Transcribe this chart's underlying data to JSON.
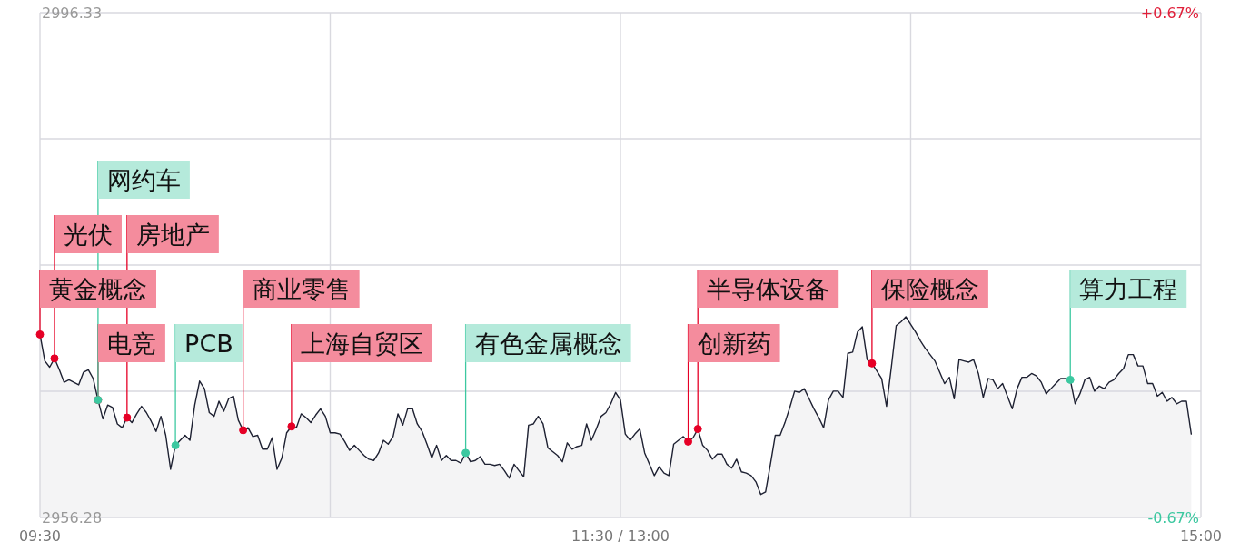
{
  "chart_data": {
    "type": "area",
    "ylim": [
      2956.28,
      2996.33
    ],
    "y2lim": [
      -0.67,
      0.67
    ],
    "categories": [
      "09:30",
      null,
      null,
      null,
      null,
      null,
      null,
      null,
      null,
      null,
      null,
      null,
      null,
      null,
      null,
      null,
      null,
      null,
      null,
      null,
      null,
      null,
      null,
      null,
      null,
      null,
      null,
      null,
      null,
      null,
      null,
      null,
      null,
      null,
      null,
      null,
      null,
      null,
      null,
      null,
      null,
      null,
      null,
      null,
      null,
      null,
      null,
      null,
      null,
      null,
      null,
      null,
      null,
      null,
      null,
      null,
      null,
      null,
      null,
      null,
      null,
      null,
      null,
      null,
      null,
      null,
      null,
      null,
      null,
      null,
      null,
      null,
      null,
      null,
      null,
      null,
      null,
      null,
      null,
      null,
      null,
      null,
      null,
      null,
      null,
      null,
      null,
      null,
      null,
      null,
      null,
      null,
      null,
      null,
      null,
      null,
      null,
      null,
      null,
      null,
      null,
      null,
      null,
      null,
      null,
      null,
      null,
      null,
      null,
      null,
      null,
      null,
      null,
      null,
      null,
      null,
      null,
      null,
      null,
      null,
      "11:30 / 13:00",
      null,
      null,
      null,
      null,
      null,
      null,
      null,
      null,
      null,
      null,
      null,
      null,
      null,
      null,
      null,
      null,
      null,
      null,
      null,
      null,
      null,
      null,
      null,
      null,
      null,
      null,
      null,
      null,
      null,
      null,
      null,
      null,
      null,
      null,
      null,
      null,
      null,
      null,
      null,
      null,
      null,
      null,
      null,
      null,
      null,
      null,
      null,
      null,
      null,
      null,
      null,
      null,
      null,
      null,
      null,
      null,
      null,
      null,
      null,
      null,
      null,
      null,
      null,
      null,
      null,
      null,
      null,
      null,
      null,
      null,
      null,
      null,
      null,
      null,
      null,
      null,
      null,
      null,
      null,
      null,
      null,
      null,
      null,
      null,
      null,
      null,
      null,
      null,
      null,
      null,
      null,
      null,
      null,
      null,
      null,
      null,
      null,
      null,
      null,
      null,
      null,
      null,
      null,
      null,
      null,
      null,
      null,
      null,
      null,
      null,
      null,
      null,
      null,
      null,
      null,
      null,
      null,
      null,
      null,
      "15:00"
    ],
    "yticks": [
      2956.28,
      {
        "value": 2966.29,
        "label": null
      },
      {
        "value": 2976.31,
        "label": null
      },
      {
        "value": 2986.32,
        "label": null
      },
      2996.33
    ],
    "y2ticks": [
      {
        "value": -0.67,
        "label": "-0.67%"
      },
      {
        "value": 0.67,
        "label": "+0.67%"
      }
    ],
    "grid": true,
    "series": [
      {
        "color": "#1e2132",
        "values": [
          2970.8,
          2968.7,
          2968.2,
          2968.9,
          2968.0,
          2967.0,
          2967.2,
          2967.0,
          2966.8,
          2967.8,
          2968.0,
          2967.3,
          2965.6,
          2964.1,
          2965.2,
          2965.0,
          2963.7,
          2963.4,
          2964.2,
          2963.8,
          2964.5,
          2965.1,
          2964.6,
          2963.9,
          2963.1,
          2964.3,
          2962.8,
          2960.1,
          2962.0,
          2962.4,
          2962.8,
          2962.4,
          2965.2,
          2967.1,
          2966.5,
          2964.6,
          2964.3,
          2965.5,
          2964.7,
          2965.7,
          2965.9,
          2964.0,
          2963.2,
          2963.4,
          2962.7,
          2962.8,
          2961.7,
          2961.7,
          2962.6,
          2960.1,
          2961.0,
          2963.0,
          2963.5,
          2963.4,
          2964.5,
          2964.2,
          2963.8,
          2964.4,
          2964.9,
          2964.3,
          2963.0,
          2963.0,
          2962.9,
          2962.3,
          2961.6,
          2962.0,
          2961.6,
          2961.2,
          2960.9,
          2960.8,
          2961.4,
          2962.4,
          2962.1,
          2962.7,
          2964.5,
          2963.6,
          2964.9,
          2964.9,
          2963.7,
          2963.1,
          2962.1,
          2961.0,
          2962.0,
          2960.8,
          2961.2,
          2960.8,
          2960.8,
          2960.6,
          2961.4,
          2960.7,
          2960.8,
          2961.1,
          2960.5,
          2960.5,
          2960.4,
          2960.5,
          2960.0,
          2959.4,
          2960.5,
          2960.0,
          2959.5,
          2963.6,
          2963.7,
          2964.3,
          2963.7,
          2961.8,
          2961.5,
          2961.2,
          2960.7,
          2962.2,
          2961.7,
          2961.9,
          2962.0,
          2963.7,
          2962.4,
          2963.3,
          2964.3,
          2964.6,
          2965.3,
          2966.2,
          2965.6,
          2962.9,
          2962.4,
          2962.9,
          2963.3,
          2961.4,
          2960.5,
          2959.6,
          2960.3,
          2959.8,
          2959.6,
          2962.1,
          2962.4,
          2962.7,
          2962.3,
          2962.6,
          2963.3,
          2962.0,
          2961.6,
          2960.9,
          2961.3,
          2961.3,
          2960.5,
          2960.2,
          2960.9,
          2959.9,
          2959.8,
          2959.6,
          2959.1,
          2958.1,
          2958.3,
          2960.5,
          2962.8,
          2962.8,
          2963.8,
          2965.0,
          2966.3,
          2966.2,
          2966.5,
          2965.7,
          2964.9,
          2964.2,
          2963.4,
          2965.6,
          2966.3,
          2966.3,
          2965.8,
          2969.3,
          2969.4,
          2971.0,
          2971.4,
          2968.8,
          2968.5,
          2967.9,
          2967.3,
          2965.1,
          2968.2,
          2971.5,
          2971.8,
          2972.2,
          2971.6,
          2971.0,
          2970.3,
          2969.7,
          2969.2,
          2968.7,
          2967.8,
          2966.9,
          2967.4,
          2965.7,
          2968.8,
          2968.7,
          2968.6,
          2968.8,
          2967.7,
          2965.8,
          2967.3,
          2967.2,
          2966.5,
          2966.9,
          2965.9,
          2964.9,
          2966.5,
          2967.4,
          2967.4,
          2967.7,
          2967.5,
          2967.0,
          2966.1,
          2966.5,
          2966.9,
          2967.3,
          2967.3,
          2967.2,
          2965.3,
          2966.1,
          2967.2,
          2967.4,
          2966.3,
          2966.7,
          2966.5,
          2967.0,
          2967.2,
          2967.7,
          2968.1,
          2969.2,
          2969.2,
          2968.3,
          2968.3,
          2966.9,
          2966.9,
          2965.9,
          2966.2,
          2965.5,
          2965.8,
          2965.3,
          2965.5,
          2965.5,
          2962.9,
          null,
          null
        ]
      },
      {
        "type": "scatter",
        "marker": "circle",
        "color": "#e60026",
        "values": [
          2970.8,
          null,
          null,
          2968.9,
          null,
          null,
          null,
          null,
          null,
          null,
          null,
          null,
          2965.6,
          null,
          null,
          null,
          null,
          null,
          2964.2,
          null,
          null,
          null,
          null,
          null,
          null,
          null,
          null,
          null,
          null,
          null,
          null,
          null,
          null,
          null,
          null,
          null,
          null,
          null,
          null,
          null,
          null,
          null,
          2963.2,
          null,
          null,
          null,
          null,
          null,
          null,
          null,
          null,
          null,
          2963.5,
          null,
          null,
          null,
          null,
          null,
          null,
          null,
          null,
          null,
          null,
          null,
          null,
          null,
          null,
          null,
          null,
          null,
          null,
          null,
          null,
          null,
          null,
          null,
          null,
          null,
          null,
          null,
          null,
          null,
          null,
          null,
          null,
          null,
          null,
          null,
          null,
          null,
          null,
          null,
          null,
          null,
          null,
          null,
          null,
          null,
          null,
          null,
          null,
          null,
          null,
          null,
          null,
          null,
          null,
          null,
          null,
          null,
          null,
          null,
          null,
          null,
          null,
          null,
          null,
          null,
          null,
          null,
          null,
          null,
          null,
          null,
          null,
          null,
          null,
          null,
          null,
          null,
          null,
          null,
          null,
          null,
          2962.3,
          null,
          2963.3,
          null,
          null,
          null,
          null,
          null,
          null,
          null,
          null,
          null,
          null,
          null,
          null,
          null,
          null,
          null,
          null,
          null,
          null,
          null,
          null,
          null,
          null,
          null,
          null,
          null,
          null,
          null,
          null,
          null,
          null,
          null,
          null,
          null,
          null,
          null,
          2968.5,
          null,
          null,
          null,
          null,
          null,
          null,
          null,
          null,
          null,
          null,
          null,
          null,
          null,
          null,
          null,
          null,
          null,
          null,
          null,
          null,
          null,
          null,
          null,
          null,
          null,
          null,
          null,
          null,
          null,
          null,
          null,
          null,
          null,
          null,
          null,
          null,
          null,
          null,
          null,
          null,
          null,
          null,
          null,
          null,
          null,
          null,
          null,
          null,
          null,
          null,
          null,
          null,
          null,
          null,
          null,
          null,
          null,
          null,
          null,
          null,
          null,
          null,
          null,
          null,
          null,
          null,
          null,
          null
        ],
        "value_labels": [
          "黄金概念",
          null,
          null,
          "光伏",
          null,
          null,
          null,
          null,
          null,
          null,
          null,
          null,
          "电竞",
          null,
          null,
          null,
          null,
          null,
          "房地产",
          null,
          null,
          null,
          null,
          null,
          null,
          null,
          null,
          null,
          null,
          null,
          null,
          null,
          null,
          null,
          null,
          null,
          null,
          null,
          null,
          null,
          null,
          null,
          "商业零售",
          null,
          null,
          null,
          null,
          null,
          null,
          null,
          null,
          null,
          "上海自贸区",
          null,
          null,
          null,
          null,
          null,
          null,
          null,
          null,
          null,
          null,
          null,
          null,
          null,
          null,
          null,
          null,
          null,
          null,
          null,
          null,
          null,
          null,
          null,
          null,
          null,
          null,
          null,
          null,
          null,
          null,
          null,
          null,
          null,
          null,
          null,
          null,
          null,
          null,
          null,
          null,
          null,
          null,
          null,
          null,
          null,
          null,
          null,
          null,
          null,
          null,
          null,
          null,
          null,
          null,
          null,
          null,
          null,
          null,
          null,
          null,
          null,
          null,
          null,
          null,
          null,
          null,
          null,
          null,
          null,
          null,
          null,
          null,
          null,
          null,
          null,
          null,
          null,
          null,
          null,
          null,
          null,
          "创新药",
          null,
          "半导体设备",
          null,
          null,
          null,
          null,
          null,
          null,
          null,
          null,
          null,
          null,
          null,
          null,
          null,
          null,
          null,
          null,
          null,
          null,
          null,
          null,
          null,
          null,
          null,
          null,
          null,
          null,
          null,
          null,
          null,
          null,
          null,
          null,
          null,
          null,
          null,
          "保险概念",
          null,
          null,
          null,
          null,
          null,
          null,
          null,
          null,
          null,
          null,
          null,
          null,
          null,
          null,
          null,
          null,
          null,
          null,
          null,
          null,
          null,
          null,
          null,
          null,
          null,
          null,
          null,
          null,
          null,
          null,
          null,
          null,
          null,
          null,
          null,
          null,
          null,
          null,
          null,
          null,
          null,
          null,
          null,
          null,
          null,
          null,
          null,
          null,
          null,
          null,
          null,
          null,
          null,
          null,
          null,
          null,
          null,
          null,
          null,
          null,
          null,
          null,
          null,
          null,
          null,
          null,
          null,
          null
        ]
      },
      {
        "type": "scatter",
        "marker": "circle",
        "color": "#3cc8a0",
        "values": [
          null,
          null,
          null,
          null,
          null,
          null,
          null,
          null,
          null,
          null,
          null,
          null,
          2965.6,
          null,
          null,
          null,
          null,
          null,
          null,
          null,
          null,
          null,
          null,
          null,
          null,
          null,
          null,
          null,
          2962.0,
          null,
          null,
          null,
          null,
          null,
          null,
          null,
          null,
          null,
          null,
          null,
          null,
          null,
          null,
          null,
          null,
          null,
          null,
          null,
          null,
          null,
          null,
          null,
          null,
          null,
          null,
          null,
          null,
          null,
          null,
          null,
          null,
          null,
          null,
          null,
          null,
          null,
          null,
          null,
          null,
          null,
          null,
          null,
          null,
          null,
          null,
          null,
          null,
          null,
          null,
          null,
          null,
          null,
          null,
          null,
          null,
          null,
          null,
          null,
          2961.4,
          null,
          null,
          null,
          null,
          null,
          null,
          null,
          null,
          null,
          null,
          null,
          null,
          null,
          null,
          null,
          null,
          null,
          null,
          null,
          null,
          null,
          null,
          null,
          null,
          null,
          null,
          null,
          null,
          null,
          null,
          null,
          null,
          null,
          null,
          null,
          null,
          null,
          null,
          null,
          null,
          null,
          null,
          null,
          null,
          null,
          null,
          null,
          null,
          null,
          null,
          null,
          null,
          null,
          null,
          null,
          null,
          null,
          null,
          null,
          null,
          null,
          null,
          null,
          null,
          null,
          null,
          null,
          null,
          null,
          null,
          null,
          null,
          null,
          null,
          null,
          null,
          null,
          null,
          null,
          null,
          null,
          null,
          null,
          null,
          null,
          null,
          null,
          null,
          null,
          null,
          null,
          null,
          null,
          null,
          null,
          null,
          null,
          null,
          null,
          null,
          null,
          null,
          null,
          null,
          null,
          null,
          null,
          null,
          null,
          null,
          null,
          null,
          null,
          null,
          null,
          null,
          null,
          null,
          null,
          null,
          null,
          null,
          null,
          null,
          2967.2,
          null,
          null,
          null,
          null,
          null,
          null,
          null,
          null,
          null,
          null,
          null,
          null,
          null,
          null,
          null,
          null,
          null,
          null,
          null,
          null,
          null,
          null,
          null,
          null,
          null,
          null,
          null
        ],
        "value_labels": [
          null,
          null,
          null,
          null,
          null,
          null,
          null,
          null,
          null,
          null,
          null,
          null,
          "网约车",
          null,
          null,
          null,
          null,
          null,
          null,
          null,
          null,
          null,
          null,
          null,
          null,
          null,
          null,
          null,
          "PCB",
          null,
          null,
          null,
          null,
          null,
          null,
          null,
          null,
          null,
          null,
          null,
          null,
          null,
          null,
          null,
          null,
          null,
          null,
          null,
          null,
          null,
          null,
          null,
          null,
          null,
          null,
          null,
          null,
          null,
          null,
          null,
          null,
          null,
          null,
          null,
          null,
          null,
          null,
          null,
          null,
          null,
          null,
          null,
          null,
          null,
          null,
          null,
          null,
          null,
          null,
          null,
          null,
          null,
          null,
          null,
          null,
          null,
          null,
          null,
          "有色金属概念",
          null,
          null,
          null,
          null,
          null,
          null,
          null,
          null,
          null,
          null,
          null,
          null,
          null,
          null,
          null,
          null,
          null,
          null,
          null,
          null,
          null,
          null,
          null,
          null,
          null,
          null,
          null,
          null,
          null,
          null,
          null,
          null,
          null,
          null,
          null,
          null,
          null,
          null,
          null,
          null,
          null,
          null,
          null,
          null,
          null,
          null,
          null,
          null,
          null,
          null,
          null,
          null,
          null,
          null,
          null,
          null,
          null,
          null,
          null,
          null,
          null,
          null,
          null,
          null,
          null,
          null,
          null,
          null,
          null,
          null,
          null,
          null,
          null,
          null,
          null,
          null,
          null,
          null,
          null,
          null,
          null,
          null,
          null,
          null,
          null,
          null,
          null,
          null,
          null,
          null,
          null,
          null,
          null,
          null,
          null,
          null,
          null,
          null,
          null,
          null,
          null,
          null,
          null,
          null,
          null,
          null,
          null,
          null,
          null,
          null,
          null,
          null,
          null,
          null,
          null,
          null,
          null,
          null,
          null,
          null,
          null,
          null,
          null,
          null,
          "算力工程",
          null,
          null,
          null,
          null,
          null,
          null,
          null,
          null,
          null,
          null,
          null,
          null,
          null,
          null,
          null,
          null,
          null,
          null,
          null,
          null,
          null,
          null,
          null,
          null,
          null,
          null,
          null
        ]
      }
    ]
  }
}
